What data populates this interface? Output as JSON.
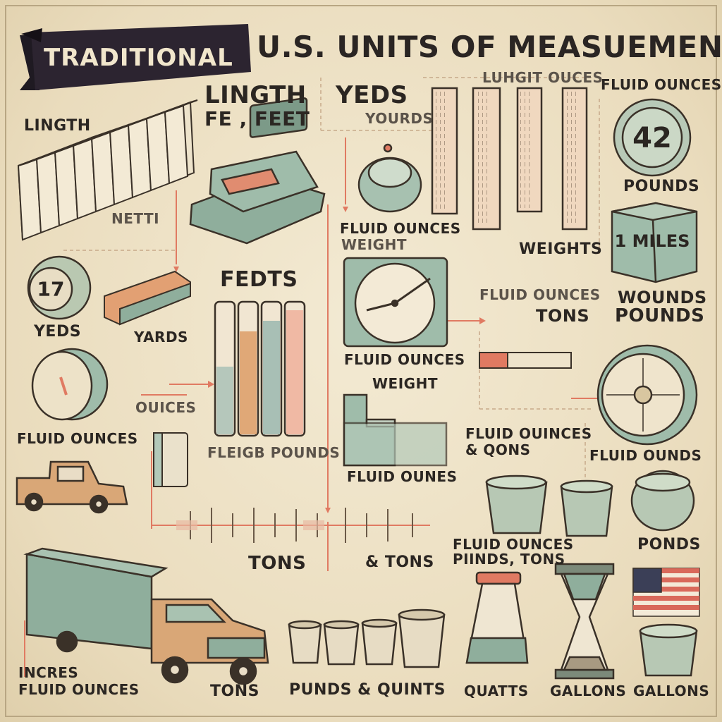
{
  "title": {
    "ribbon": "TRADITIONAL",
    "main": "U.S. UNITS OF MEASUEMENT"
  },
  "labels": {
    "lingth_left": "LINGTH",
    "lingth_center": "LINGTH",
    "fe_feet": "FE , FEET",
    "yeds_center": "YEDS",
    "yourds": "YOURDS",
    "luhgit_ouces": "LUHGIT OUCES",
    "fluid_ounces_top_right": "FLUID OUNCES",
    "dial_42": "42",
    "pounds_right": "POUNDS",
    "box_1_miles": "1 MILES",
    "wounds": "WOUNDS",
    "pounds_right_2": "POUNDS",
    "fluid_ounces_scale": "FLUID OUNCES",
    "weight_small": "WEIGHT",
    "weights": "WEIGHTS",
    "netti": "NETTI",
    "dial_17": "17",
    "yeds_left": "YEDS",
    "yards": "YARDS",
    "fedts": "FEDTS",
    "fluid_ounces_clock": "FLUID OUNCES",
    "fluid_ounces_mid_right": "FLUID OUNCES",
    "tons_mid_right": "TONS",
    "ouices": "OUICES",
    "fluid_ounces_left": "FLUID OUNCES",
    "weight_center": "WEIGHT",
    "fleigb_pounds": "FLEIGB POUNDS",
    "fluid_ounes": "FLUID OUNES",
    "fluid_ouinces_qons": "FLUID OUINCES\n& QONS",
    "fluid_ounds": "FLUID OUNDS",
    "tons_timeline_left": "TONS",
    "tons_timeline_right": "& TONS",
    "fluid_ounces_pinds_tons": "FLUID OUNCES\nPIINDS, TONS",
    "ponds": "PONDS",
    "inches_fluid_ounces": "INCRES\nFLUID OUNCES",
    "tons_bottom": "TONS",
    "punds_quints": "PUNDS & QUINTS",
    "quatts": "QUATTS",
    "gallons_1": "GALLONS",
    "gallons_2": "GALLONS"
  },
  "colors": {
    "background": "#efe4cb",
    "ink": "#2b2622",
    "sage": "#8fae9c",
    "coral": "#e07a62",
    "tan": "#d9a777",
    "ribbon": "#2c2430"
  },
  "icons": [
    "book-row-icon",
    "measuring-scale-icon",
    "kitchen-scale-icon",
    "ruler-icon",
    "dial-icon",
    "weight-block-icon",
    "pickup-truck-icon",
    "test-tube-icon",
    "clock-gauge-icon",
    "step-weight-icon",
    "bucket-icon",
    "cup-icon",
    "hourglass-icon",
    "flask-icon",
    "us-flag-icon",
    "box-truck-icon"
  ]
}
